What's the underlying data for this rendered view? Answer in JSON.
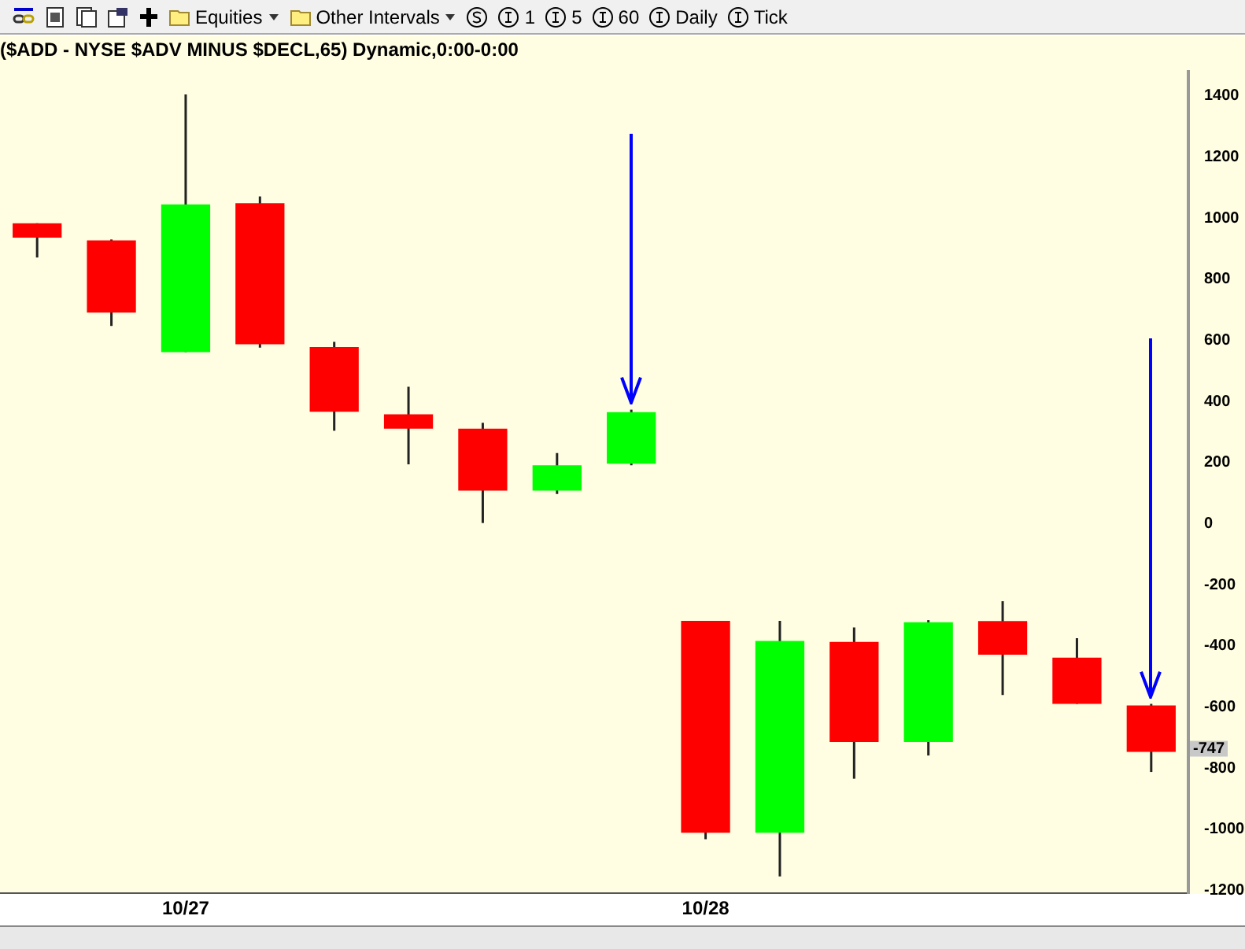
{
  "chart_data": {
    "type": "candlestick",
    "title": "($ADD - NYSE $ADV MINUS $DECL,65) Dynamic,0:00-0:00",
    "categories": [
      null,
      null,
      "10/27",
      null,
      null,
      null,
      null,
      null,
      null,
      "10/28",
      null,
      null,
      null,
      null,
      null,
      null
    ],
    "ohlc": [
      [
        983,
        983,
        871,
        936
      ],
      [
        927,
        930,
        647,
        691
      ],
      [
        561,
        1405,
        561,
        1045
      ],
      [
        1049,
        1071,
        576,
        587
      ],
      [
        578,
        595,
        304,
        366
      ],
      [
        358,
        448,
        194,
        311
      ],
      [
        311,
        330,
        2,
        108
      ],
      [
        108,
        231,
        97,
        191
      ],
      [
        196,
        373,
        191,
        365
      ],
      [
        -318,
        -318,
        -1033,
        -1012
      ],
      [
        -1012,
        -318,
        -1155,
        -384
      ],
      [
        -387,
        -340,
        -835,
        -715
      ],
      [
        -715,
        -316,
        -759,
        -323
      ],
      [
        -319,
        -254,
        -561,
        -429
      ],
      [
        -439,
        -375,
        -590,
        -590
      ],
      [
        -595,
        -590,
        -813,
        -747
      ]
    ],
    "colors": [
      "#ff0000",
      "#ff0000",
      "#00ff00",
      "#ff0000",
      "#ff0000",
      "#ff0000",
      "#ff0000",
      "#00ff00",
      "#00ff00",
      "#ff0000",
      "#00ff00",
      "#ff0000",
      "#00ff00",
      "#ff0000",
      "#ff0000",
      "#ff0000"
    ],
    "ylim": [
      -1210,
      1480
    ],
    "yticks": [
      -1200,
      -1000,
      -800,
      -600,
      -400,
      -200,
      0,
      200,
      400,
      600,
      800,
      1000,
      1200,
      1400
    ],
    "annotations": [
      "Equities",
      "Other Intervals",
      "1",
      "5",
      "60",
      "Daily",
      "Tick",
      "-747"
    ]
  }
}
